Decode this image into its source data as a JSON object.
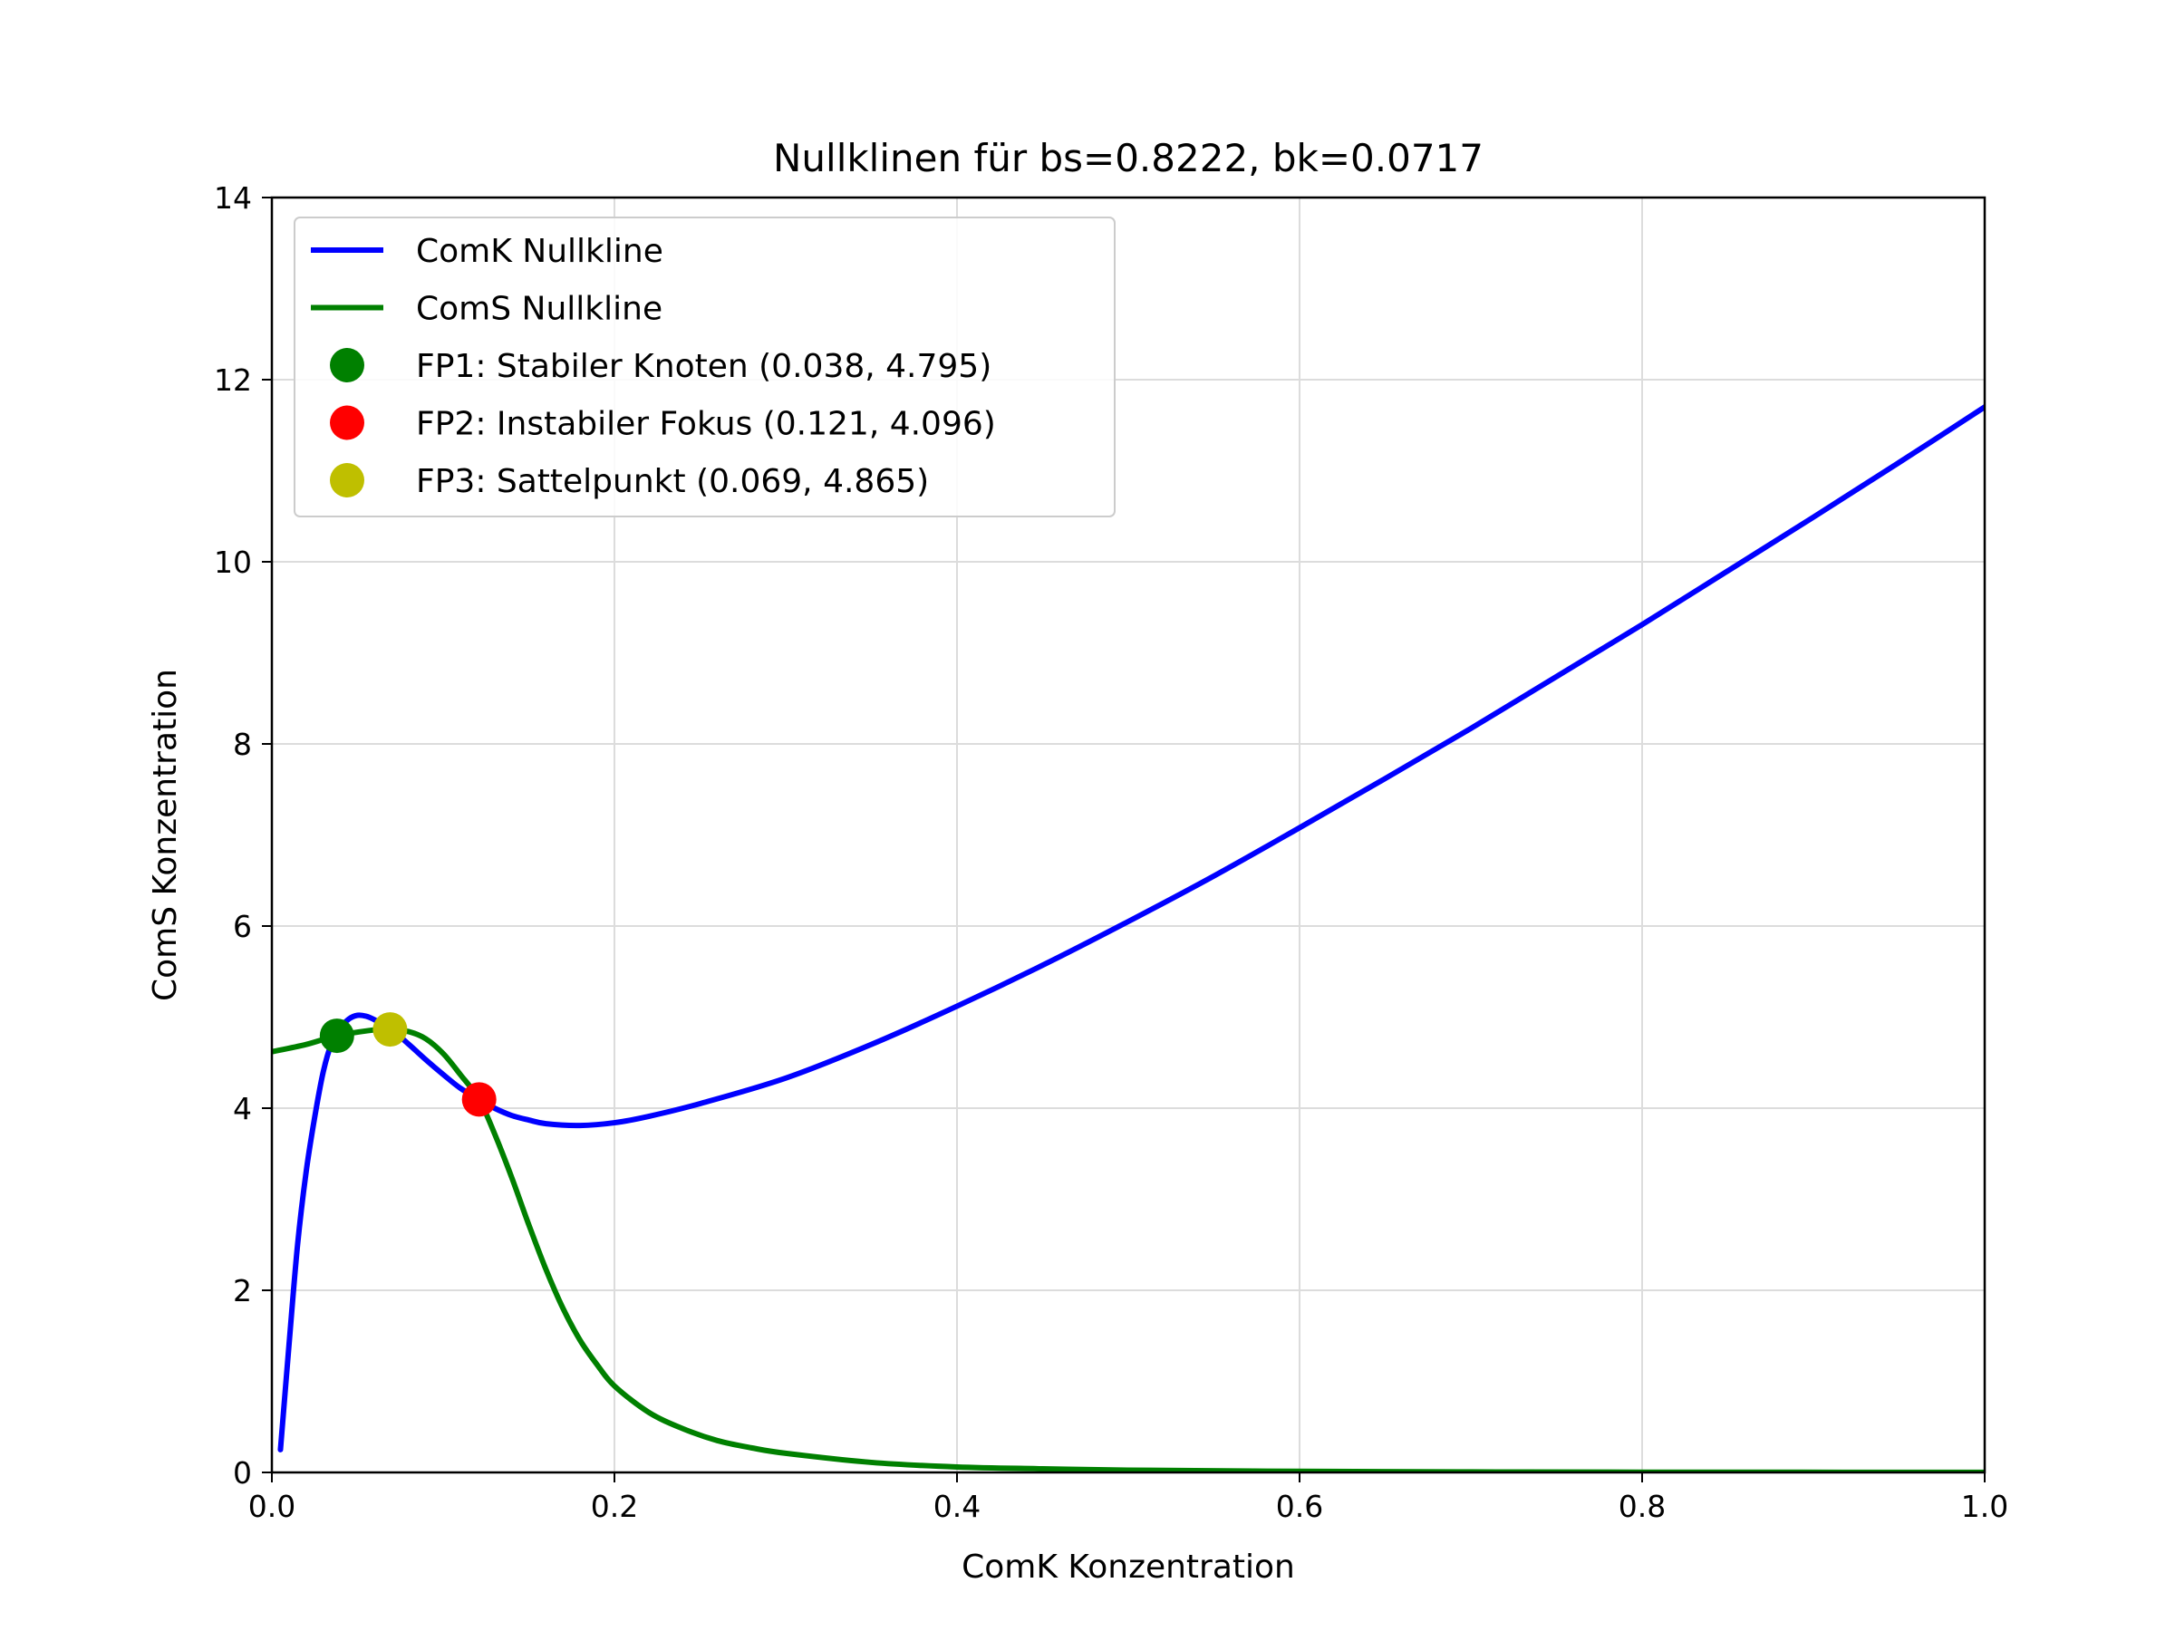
{
  "chart_data": {
    "type": "line",
    "title": "Nullklinen für bs=0.8222, bk=0.0717",
    "xlabel": "ComK Konzentration",
    "ylabel": "ComS Konzentration",
    "xlim": [
      0.0,
      1.0
    ],
    "ylim": [
      0,
      14
    ],
    "grid": true,
    "legend_position": "top-left",
    "x_ticks": [
      "0.0",
      "0.2",
      "0.4",
      "0.6",
      "0.8",
      "1.0"
    ],
    "y_ticks": [
      "0",
      "2",
      "4",
      "6",
      "8",
      "10",
      "12",
      "14"
    ],
    "series": [
      {
        "name": "ComK Nullkline",
        "color": "#0000ff",
        "x": [
          0.005,
          0.01,
          0.015,
          0.02,
          0.025,
          0.03,
          0.035,
          0.04,
          0.045,
          0.05,
          0.055,
          0.06,
          0.07,
          0.08,
          0.09,
          0.1,
          0.11,
          0.121,
          0.13,
          0.14,
          0.15,
          0.16,
          0.18,
          0.2,
          0.22,
          0.25,
          0.3,
          0.35,
          0.4,
          0.45,
          0.5,
          0.55,
          0.6,
          0.65,
          0.7,
          0.75,
          0.8,
          0.85,
          0.9,
          0.95,
          1.0
        ],
        "y": [
          0.25,
          1.4,
          2.5,
          3.3,
          3.9,
          4.4,
          4.72,
          4.88,
          4.98,
          5.02,
          5.01,
          4.97,
          4.86,
          4.7,
          4.53,
          4.37,
          4.22,
          4.096,
          4.0,
          3.92,
          3.87,
          3.83,
          3.81,
          3.84,
          3.91,
          4.05,
          4.33,
          4.7,
          5.12,
          5.57,
          6.05,
          6.55,
          7.08,
          7.62,
          8.17,
          8.74,
          9.31,
          9.9,
          10.49,
          11.09,
          11.7
        ]
      },
      {
        "name": "ComS Nullkline",
        "color": "#008000",
        "x": [
          0.0,
          0.02,
          0.038,
          0.06,
          0.069,
          0.08,
          0.09,
          0.1,
          0.11,
          0.121,
          0.13,
          0.14,
          0.15,
          0.16,
          0.17,
          0.18,
          0.19,
          0.2,
          0.22,
          0.24,
          0.26,
          0.28,
          0.3,
          0.35,
          0.4,
          0.45,
          0.5,
          0.6,
          0.7,
          0.8,
          1.0
        ],
        "y": [
          4.62,
          4.7,
          4.795,
          4.86,
          4.865,
          4.84,
          4.76,
          4.6,
          4.37,
          4.096,
          3.72,
          3.24,
          2.72,
          2.23,
          1.8,
          1.45,
          1.18,
          0.95,
          0.66,
          0.48,
          0.35,
          0.27,
          0.21,
          0.11,
          0.06,
          0.04,
          0.025,
          0.012,
          0.006,
          0.003,
          0.001
        ]
      }
    ],
    "points": [
      {
        "name": "FP1: Stabiler Knoten (0.038, 4.795)",
        "x": 0.038,
        "y": 4.795,
        "color": "#008000"
      },
      {
        "name": "FP2: Instabiler Fokus (0.121, 4.096)",
        "x": 0.121,
        "y": 4.096,
        "color": "#ff0000"
      },
      {
        "name": "FP3: Sattelpunkt (0.069, 4.865)",
        "x": 0.069,
        "y": 4.865,
        "color": "#bfbf00"
      }
    ]
  }
}
